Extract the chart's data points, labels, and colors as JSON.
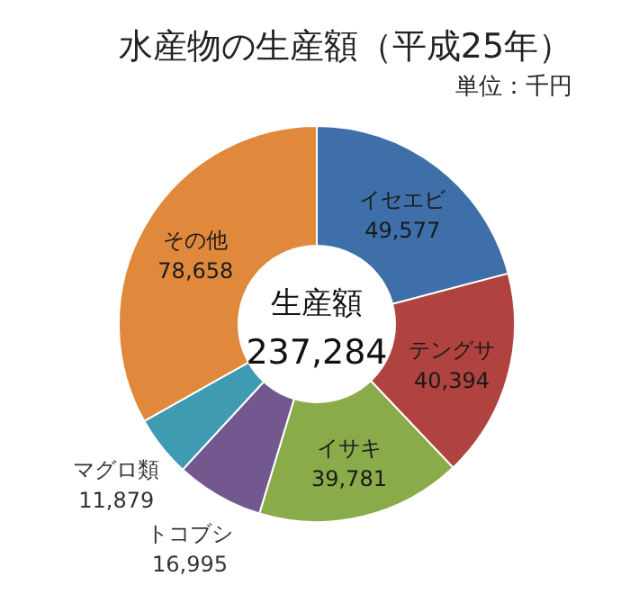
{
  "chart_data": {
    "type": "donut",
    "title": "水産物の生産額（平成25年）",
    "subtitle": "単位：千円",
    "categories": [
      "イセエビ",
      "テングサ",
      "イサキ",
      "トコブシ",
      "マグロ類",
      "その他"
    ],
    "values": [
      49577,
      40394,
      39781,
      16995,
      11879,
      78658
    ],
    "value_labels": [
      "49,577",
      "40,394",
      "39,781",
      "16,995",
      "11,879",
      "78,658"
    ],
    "colors": [
      "#3e6fa8",
      "#b0433f",
      "#8aab4a",
      "#72588f",
      "#3f9bb2",
      "#e0883c"
    ],
    "annotations": [
      "生産額",
      "237,284"
    ],
    "legend": false
  }
}
